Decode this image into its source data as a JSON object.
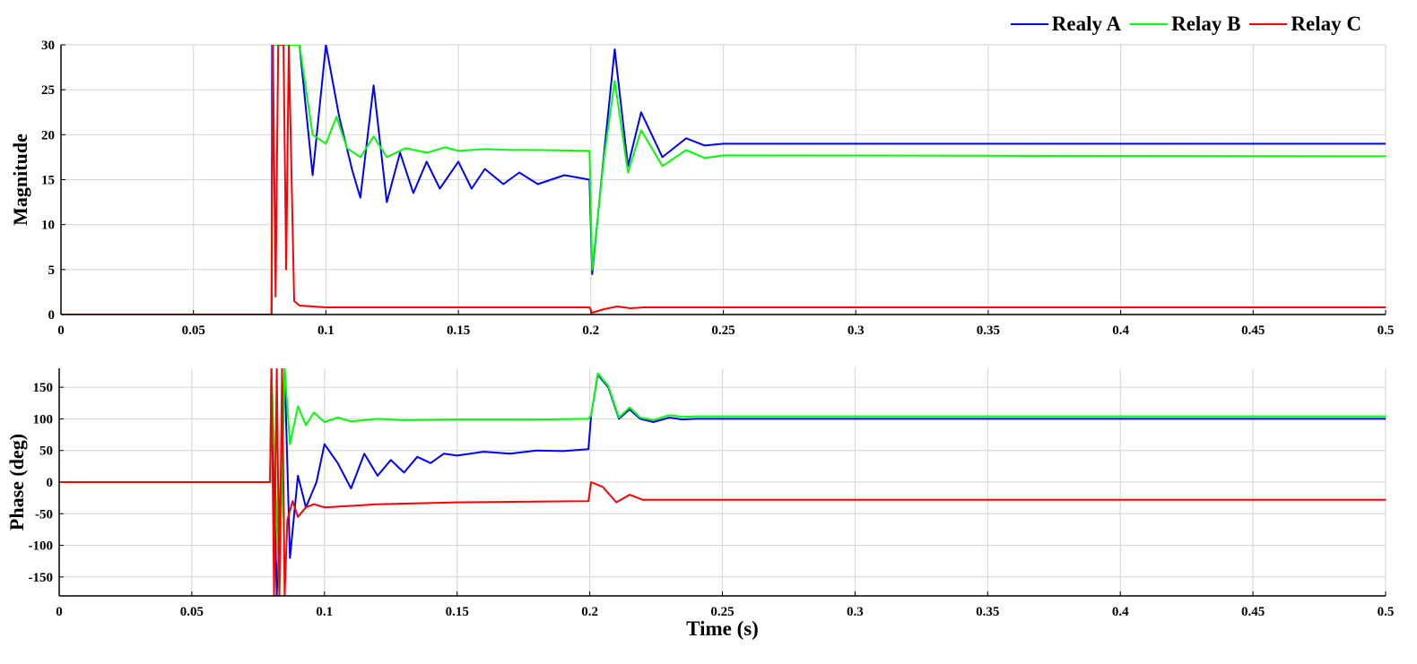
{
  "colors": {
    "relay_a": "#0000ff",
    "relay_b": "#00ff00",
    "relay_c": "#ff0000",
    "axis": "#000000",
    "grid": "#d9d9d9"
  },
  "legend": [
    {
      "label": "Realy A",
      "color": "#0000ff"
    },
    {
      "label": "Relay B",
      "color": "#00ff00"
    },
    {
      "label": "Relay C",
      "color": "#ff0000"
    }
  ],
  "chart_data": [
    {
      "type": "line",
      "ylabel": "Magnitude",
      "xlabel": "",
      "xlim": [
        0,
        0.5
      ],
      "ylim": [
        0,
        30
      ],
      "grid": true,
      "legend_position": "top-right",
      "xticks": [
        "0",
        "0.05",
        "0.1",
        "0.15",
        "0.2",
        "0.25",
        "0.3",
        "0.35",
        "0.4",
        "0.45",
        "0.5"
      ],
      "yticks": [
        "0",
        "5",
        "10",
        "15",
        "20",
        "25",
        "30"
      ],
      "series": [
        {
          "name": "Realy A",
          "color": "#0000ff",
          "x": [
            0,
            0.0795,
            0.0797,
            0.08,
            0.085,
            0.09,
            0.095,
            0.1,
            0.105,
            0.11,
            0.113,
            0.118,
            0.123,
            0.128,
            0.133,
            0.138,
            0.143,
            0.15,
            0.155,
            0.16,
            0.167,
            0.173,
            0.18,
            0.19,
            0.1995,
            0.2005,
            0.205,
            0.209,
            0.214,
            0.219,
            0.227,
            0.236,
            0.243,
            0.25,
            0.5
          ],
          "y": [
            0,
            0,
            30,
            30,
            30,
            30,
            15.5,
            30,
            22,
            16,
            13,
            25.5,
            12.5,
            18,
            13.5,
            17,
            14,
            17,
            14,
            16.2,
            14.5,
            15.8,
            14.5,
            15.5,
            15,
            4.5,
            18,
            29.5,
            16.5,
            22.5,
            17.5,
            19.6,
            18.8,
            19,
            19
          ]
        },
        {
          "name": "Relay B",
          "color": "#00ff00",
          "x": [
            0,
            0.0795,
            0.0797,
            0.08,
            0.085,
            0.09,
            0.095,
            0.1,
            0.104,
            0.108,
            0.113,
            0.118,
            0.123,
            0.13,
            0.138,
            0.145,
            0.15,
            0.16,
            0.17,
            0.18,
            0.1995,
            0.2005,
            0.205,
            0.209,
            0.214,
            0.219,
            0.227,
            0.236,
            0.243,
            0.25,
            0.5
          ],
          "y": [
            0,
            0,
            15,
            30,
            30,
            30,
            20,
            19,
            22,
            18.5,
            17.5,
            19.8,
            17.5,
            18.5,
            18,
            18.6,
            18.2,
            18.4,
            18.3,
            18.3,
            18.2,
            5,
            17.5,
            26,
            15.8,
            20.5,
            16.5,
            18.3,
            17.4,
            17.7,
            17.6
          ]
        },
        {
          "name": "Relay C",
          "color": "#ff0000",
          "x": [
            0,
            0.0795,
            0.08,
            0.081,
            0.082,
            0.084,
            0.085,
            0.086,
            0.088,
            0.09,
            0.1,
            0.15,
            0.1995,
            0.2005,
            0.205,
            0.21,
            0.215,
            0.22,
            0.5
          ],
          "y": [
            0,
            0,
            30,
            2,
            30,
            30,
            5,
            30,
            1.5,
            1,
            0.8,
            0.8,
            0.8,
            0.2,
            0.6,
            0.9,
            0.7,
            0.8,
            0.8
          ]
        }
      ]
    },
    {
      "type": "line",
      "ylabel": "Phase (deg)",
      "xlabel": "Time (s)",
      "xlim": [
        0,
        0.5
      ],
      "ylim": [
        -180,
        180
      ],
      "grid": true,
      "xticks": [
        "0",
        "0.05",
        "0.1",
        "0.15",
        "0.2",
        "0.25",
        "0.3",
        "0.35",
        "0.4",
        "0.45",
        "0.5"
      ],
      "yticks": [
        "-150",
        "-100",
        "-50",
        "0",
        "50",
        "100",
        "150"
      ],
      "series": [
        {
          "name": "Realy A",
          "color": "#0000ff",
          "x": [
            0,
            0.0795,
            0.08,
            0.082,
            0.085,
            0.087,
            0.09,
            0.093,
            0.097,
            0.1,
            0.105,
            0.11,
            0.115,
            0.12,
            0.125,
            0.13,
            0.135,
            0.14,
            0.145,
            0.15,
            0.16,
            0.17,
            0.18,
            0.19,
            0.1995,
            0.2005,
            0.203,
            0.207,
            0.211,
            0.215,
            0.219,
            0.224,
            0.23,
            0.235,
            0.24,
            0.5
          ],
          "y": [
            0,
            0,
            180,
            -180,
            180,
            -120,
            10,
            -40,
            0,
            60,
            30,
            -10,
            45,
            10,
            35,
            15,
            40,
            30,
            45,
            42,
            48,
            45,
            50,
            49,
            52,
            105,
            170,
            150,
            100,
            115,
            100,
            95,
            102,
            99,
            100,
            100
          ]
        },
        {
          "name": "Relay B",
          "color": "#00ff00",
          "x": [
            0,
            0.0795,
            0.08,
            0.083,
            0.085,
            0.087,
            0.09,
            0.093,
            0.096,
            0.1,
            0.105,
            0.11,
            0.12,
            0.13,
            0.15,
            0.18,
            0.1995,
            0.2005,
            0.203,
            0.207,
            0.211,
            0.215,
            0.219,
            0.224,
            0.23,
            0.235,
            0.24,
            0.5
          ],
          "y": [
            0,
            0,
            180,
            -180,
            180,
            60,
            120,
            90,
            110,
            95,
            102,
            96,
            100,
            98,
            99,
            99,
            100,
            105,
            172,
            152,
            102,
            118,
            102,
            98,
            106,
            103,
            104,
            104
          ]
        },
        {
          "name": "Relay C",
          "color": "#ff0000",
          "x": [
            0,
            0.0795,
            0.08,
            0.081,
            0.082,
            0.083,
            0.084,
            0.085,
            0.086,
            0.088,
            0.09,
            0.093,
            0.096,
            0.1,
            0.12,
            0.15,
            0.1995,
            0.2005,
            0.205,
            0.21,
            0.215,
            0.22,
            0.5
          ],
          "y": [
            0,
            0,
            180,
            -180,
            180,
            -180,
            180,
            -180,
            -60,
            -30,
            -55,
            -40,
            -35,
            -40,
            -35,
            -32,
            -30,
            0,
            -8,
            -32,
            -20,
            -28,
            -28
          ]
        }
      ]
    }
  ]
}
